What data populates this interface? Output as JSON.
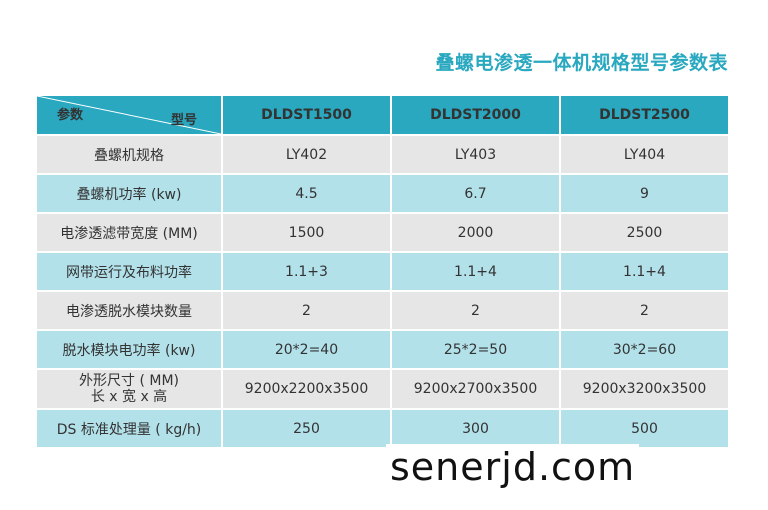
{
  "title": "叠螺电渗透一体机规格型号参数表",
  "header": {
    "corner_param": "参数",
    "corner_model": "型号",
    "models": [
      "DLDST1500",
      "DLDST2000",
      "DLDST2500"
    ]
  },
  "rows": [
    {
      "label": "叠螺机规格",
      "values": [
        "LY402",
        "LY403",
        "LY404"
      ]
    },
    {
      "label": "叠螺机功率 (kw)",
      "values": [
        "4.5",
        "6.7",
        "9"
      ]
    },
    {
      "label": "电渗透滤带宽度 (MM)",
      "values": [
        "1500",
        "2000",
        "2500"
      ]
    },
    {
      "label": "网带运行及布料功率",
      "values": [
        "1.1+3",
        "1.1+4",
        "1.1+4"
      ]
    },
    {
      "label": "电渗透脱水模块数量",
      "values": [
        "2",
        "2",
        "2"
      ]
    },
    {
      "label": "脱水模块电功率 (kw)",
      "values": [
        "20*2=40",
        "25*2=50",
        "30*2=60"
      ]
    },
    {
      "label": "外形尺寸 ( MM)",
      "label2": "长 x 宽 x 高",
      "values": [
        "9200x2200x3500",
        "9200x2700x3500",
        "9200x3200x3500"
      ]
    },
    {
      "label": "DS 标准处理量 ( kg/h)",
      "values": [
        "250",
        "300",
        "500"
      ]
    }
  ],
  "colors": {
    "accent": "#2aa8c0",
    "row_grey": "#e6e6e6",
    "row_blue": "#b3e1ea"
  },
  "watermark": "senerjd.com"
}
